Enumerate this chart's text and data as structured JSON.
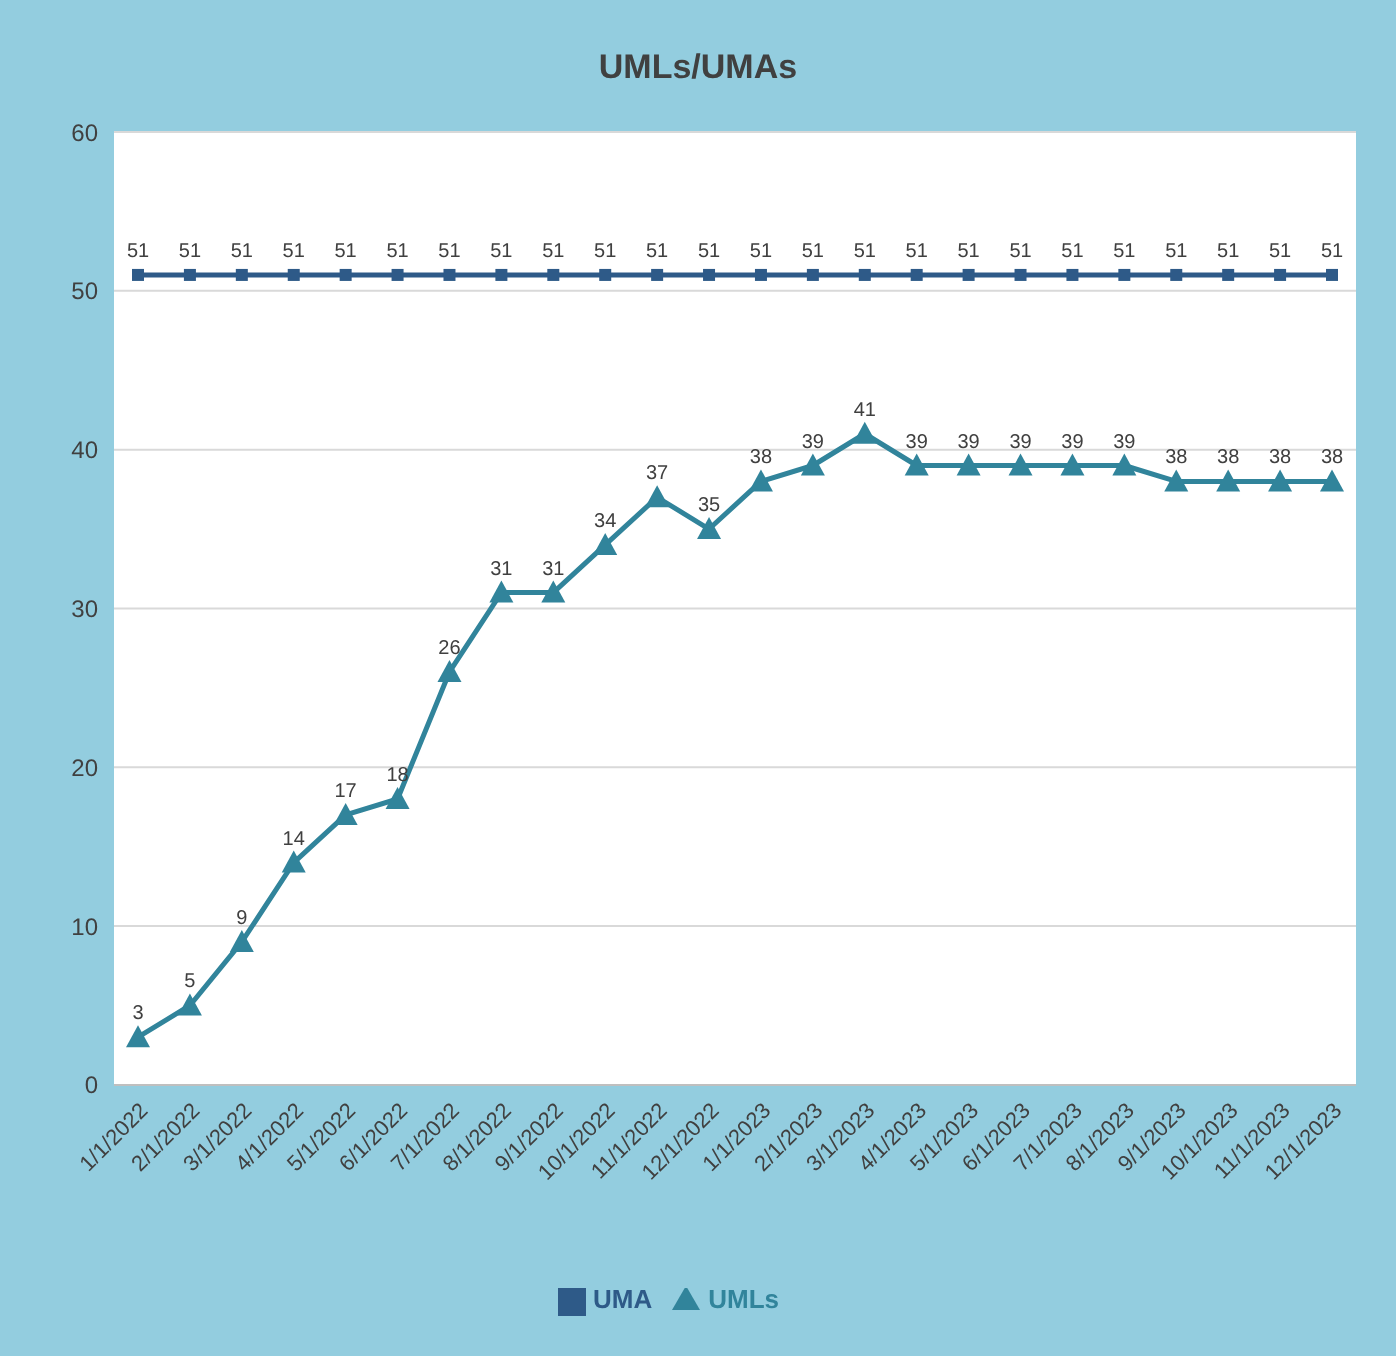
{
  "chart_data": {
    "type": "line",
    "title": "UMLs/UMAs",
    "categories": [
      "1/1/2022",
      "2/1/2022",
      "3/1/2022",
      "4/1/2022",
      "5/1/2022",
      "6/1/2022",
      "7/1/2022",
      "8/1/2022",
      "9/1/2022",
      "10/1/2022",
      "11/1/2022",
      "12/1/2022",
      "1/1/2023",
      "2/1/2023",
      "3/1/2023",
      "4/1/2023",
      "5/1/2023",
      "6/1/2023",
      "7/1/2023",
      "8/1/2023",
      "9/1/2023",
      "10/1/2023",
      "11/1/2023",
      "12/1/2023"
    ],
    "series": [
      {
        "name": "UMA",
        "color": "#2e5a88",
        "marker": "square",
        "values": [
          51,
          51,
          51,
          51,
          51,
          51,
          51,
          51,
          51,
          51,
          51,
          51,
          51,
          51,
          51,
          51,
          51,
          51,
          51,
          51,
          51,
          51,
          51,
          51
        ]
      },
      {
        "name": "UMLs",
        "color": "#31849b",
        "marker": "triangle",
        "values": [
          3,
          5,
          9,
          14,
          17,
          18,
          26,
          31,
          31,
          34,
          37,
          35,
          38,
          39,
          41,
          39,
          39,
          39,
          39,
          39,
          38,
          38,
          38,
          38
        ]
      }
    ],
    "ylim": [
      0,
      60
    ],
    "yticks": [
      0,
      10,
      20,
      30,
      40,
      50,
      60
    ],
    "grid": "y",
    "legend": "bottom",
    "data_labels": true,
    "line_style": "solid"
  }
}
